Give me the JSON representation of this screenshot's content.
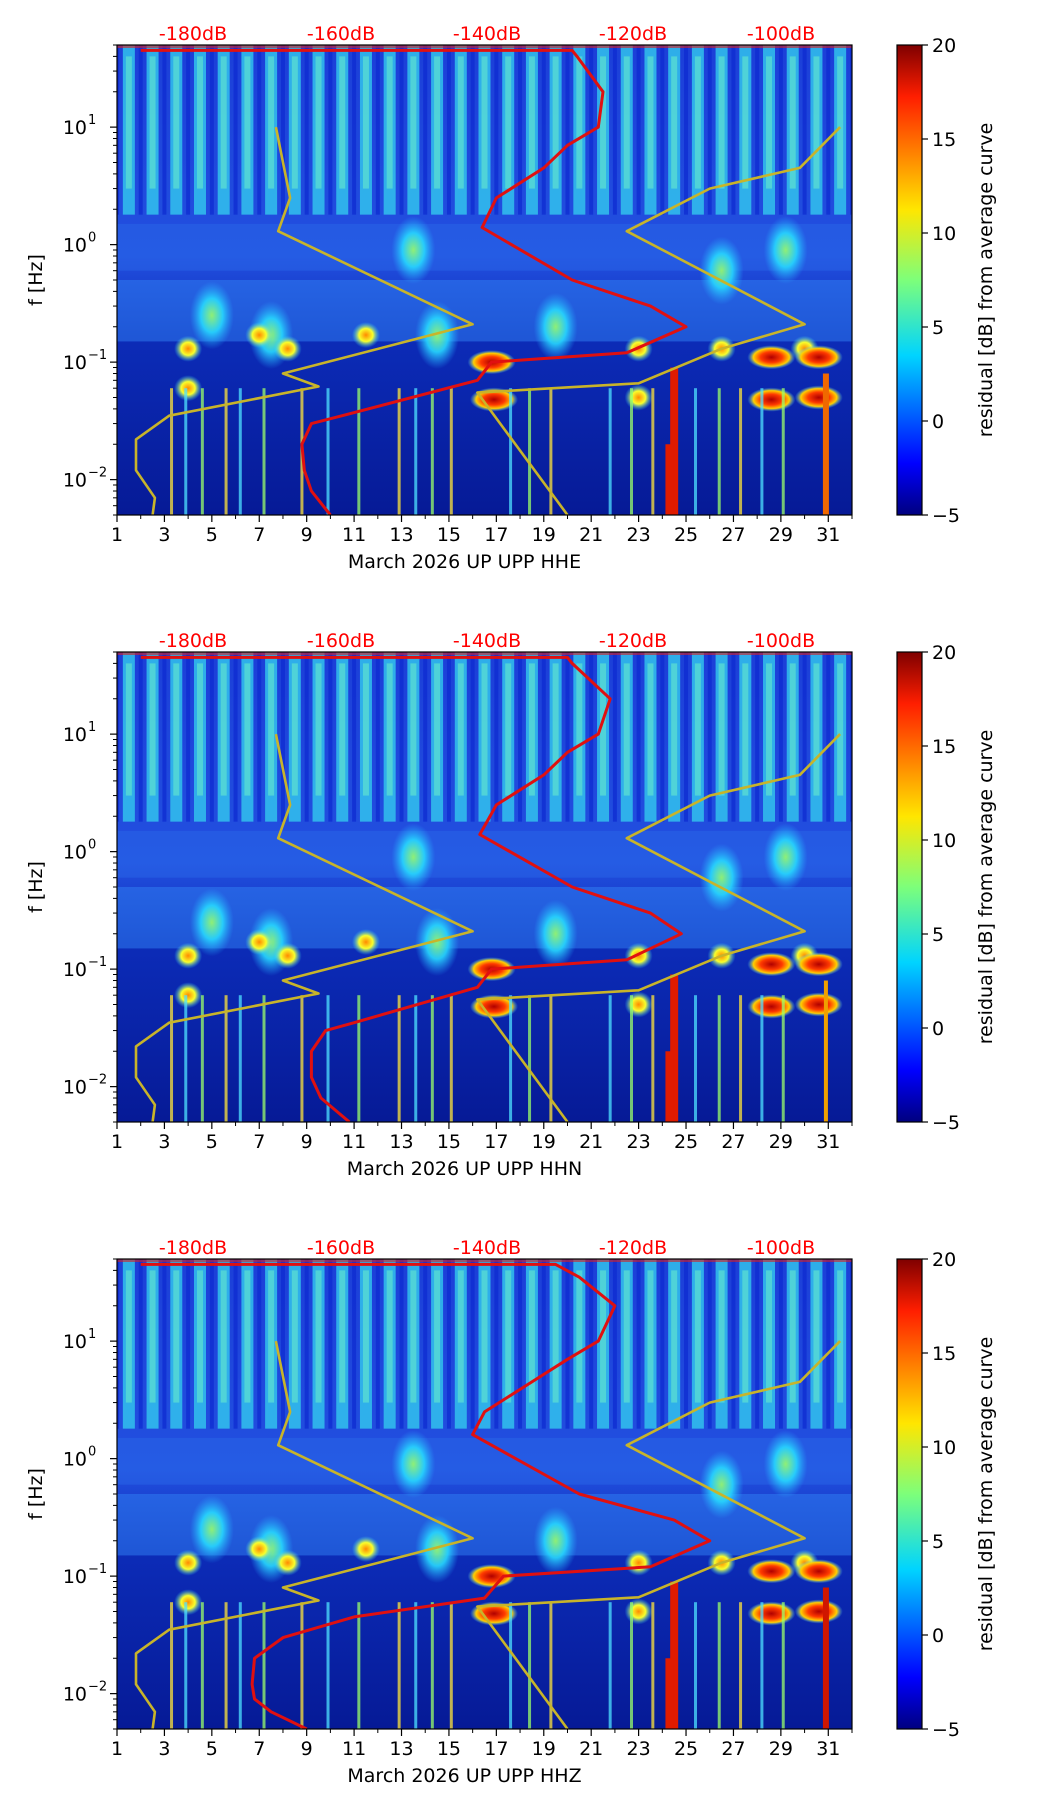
{
  "chart_data": [
    {
      "type": "heatmap",
      "xlabel": "March 2026 UP UPP  HHE",
      "ylabel": "f [Hz]",
      "x_ticks": [
        "1",
        "3",
        "5",
        "7",
        "9",
        "11",
        "13",
        "15",
        "17",
        "19",
        "21",
        "23",
        "25",
        "27",
        "29",
        "31"
      ],
      "x_range": [
        1,
        32
      ],
      "y_scale": "log",
      "y_range": [
        0.005,
        50
      ],
      "y_ticks": [
        "10^-2",
        "10^-1",
        "10^0",
        "10^1"
      ],
      "top_axis_ticks": [
        "-180dB",
        "-160dB",
        "-140dB",
        "-120dB",
        "-100dB"
      ],
      "top_axis_color": "#ff0000",
      "colorbar": {
        "label": "residual [dB] from average curve",
        "min": -5,
        "max": 20,
        "ticks": [
          "20",
          "15",
          "10",
          "5",
          "0",
          "−5"
        ]
      },
      "series": [
        {
          "name": "noise model bounds",
          "color": "#c8b42a",
          "points": [
            [
              2.5,
              0.005
            ],
            [
              2.6,
              0.007
            ],
            [
              1.8,
              0.012
            ],
            [
              1.8,
              0.022
            ],
            [
              3.2,
              0.035
            ],
            [
              9.5,
              0.062
            ],
            [
              8,
              0.08
            ],
            [
              16,
              0.21
            ],
            [
              7.8,
              1.3
            ],
            [
              8.3,
              2.5
            ],
            [
              7.7,
              10
            ]
          ]
        },
        {
          "name": "noise model bounds high",
          "color": "#c8b42a",
          "points": [
            [
              20,
              0.005
            ],
            [
              16.2,
              0.055
            ],
            [
              23,
              0.066
            ],
            [
              26.5,
              0.13
            ],
            [
              30,
              0.21
            ],
            [
              22.5,
              1.3
            ],
            [
              26,
              3
            ],
            [
              29.8,
              4.5
            ],
            [
              31.5,
              10
            ]
          ]
        },
        {
          "name": "PSD curve",
          "color": "#e01010",
          "points": [
            [
              10,
              0.005
            ],
            [
              9.2,
              0.008
            ],
            [
              8.9,
              0.012
            ],
            [
              8.8,
              0.02
            ],
            [
              9.2,
              0.03
            ],
            [
              10.5,
              0.035
            ],
            [
              16.2,
              0.07
            ],
            [
              16.8,
              0.1
            ],
            [
              22.5,
              0.12
            ],
            [
              25,
              0.2
            ],
            [
              23.5,
              0.3
            ],
            [
              20.2,
              0.5
            ],
            [
              16.4,
              1.4
            ],
            [
              17,
              2.5
            ],
            [
              19,
              4.5
            ],
            [
              20,
              7
            ],
            [
              21.3,
              10
            ],
            [
              21.5,
              20
            ],
            [
              20.4,
              40
            ],
            [
              20.2,
              45
            ],
            [
              2,
              45
            ]
          ]
        }
      ]
    },
    {
      "type": "heatmap",
      "xlabel": "March 2026 UP UPP  HHN",
      "ylabel": "f [Hz]",
      "x_ticks": [
        "1",
        "3",
        "5",
        "7",
        "9",
        "11",
        "13",
        "15",
        "17",
        "19",
        "21",
        "23",
        "25",
        "27",
        "29",
        "31"
      ],
      "x_range": [
        1,
        32
      ],
      "y_scale": "log",
      "y_range": [
        0.005,
        50
      ],
      "y_ticks": [
        "10^-2",
        "10^-1",
        "10^0",
        "10^1"
      ],
      "top_axis_ticks": [
        "-180dB",
        "-160dB",
        "-140dB",
        "-120dB",
        "-100dB"
      ],
      "top_axis_color": "#ff0000",
      "colorbar": {
        "label": "residual [dB] from average curve",
        "min": -5,
        "max": 20,
        "ticks": [
          "20",
          "15",
          "10",
          "5",
          "0",
          "−5"
        ]
      },
      "series": [
        {
          "name": "noise model bounds",
          "color": "#c8b42a",
          "points": [
            [
              2.5,
              0.005
            ],
            [
              2.6,
              0.007
            ],
            [
              1.8,
              0.012
            ],
            [
              1.8,
              0.022
            ],
            [
              3.2,
              0.035
            ],
            [
              9.5,
              0.062
            ],
            [
              8,
              0.08
            ],
            [
              16,
              0.21
            ],
            [
              7.8,
              1.3
            ],
            [
              8.3,
              2.5
            ],
            [
              7.7,
              10
            ]
          ]
        },
        {
          "name": "noise model bounds high",
          "color": "#c8b42a",
          "points": [
            [
              20,
              0.005
            ],
            [
              16.2,
              0.055
            ],
            [
              23,
              0.066
            ],
            [
              26.5,
              0.13
            ],
            [
              30,
              0.21
            ],
            [
              22.5,
              1.3
            ],
            [
              26,
              3
            ],
            [
              29.8,
              4.5
            ],
            [
              31.5,
              10
            ]
          ]
        },
        {
          "name": "PSD curve",
          "color": "#e01010",
          "points": [
            [
              10.8,
              0.005
            ],
            [
              9.6,
              0.008
            ],
            [
              9.2,
              0.012
            ],
            [
              9.2,
              0.02
            ],
            [
              9.8,
              0.03
            ],
            [
              11,
              0.035
            ],
            [
              16.2,
              0.07
            ],
            [
              16.8,
              0.1
            ],
            [
              22.5,
              0.12
            ],
            [
              24.8,
              0.2
            ],
            [
              23.5,
              0.3
            ],
            [
              20.2,
              0.5
            ],
            [
              16.3,
              1.4
            ],
            [
              17,
              2.5
            ],
            [
              19,
              4.5
            ],
            [
              20,
              7
            ],
            [
              21.3,
              10
            ],
            [
              21.8,
              20
            ],
            [
              20.2,
              40
            ],
            [
              20,
              45
            ],
            [
              2,
              45
            ]
          ]
        }
      ]
    },
    {
      "type": "heatmap",
      "xlabel": "March 2026 UP UPP  HHZ",
      "ylabel": "f [Hz]",
      "x_ticks": [
        "1",
        "3",
        "5",
        "7",
        "9",
        "11",
        "13",
        "15",
        "17",
        "19",
        "21",
        "23",
        "25",
        "27",
        "29",
        "31"
      ],
      "x_range": [
        1,
        32
      ],
      "y_scale": "log",
      "y_range": [
        0.005,
        50
      ],
      "y_ticks": [
        "10^-2",
        "10^-1",
        "10^0",
        "10^1"
      ],
      "top_axis_ticks": [
        "-180dB",
        "-160dB",
        "-140dB",
        "-120dB",
        "-100dB"
      ],
      "top_axis_color": "#ff0000",
      "colorbar": {
        "label": "residual [dB] from average curve",
        "min": -5,
        "max": 20,
        "ticks": [
          "20",
          "15",
          "10",
          "5",
          "0",
          "−5"
        ]
      },
      "series": [
        {
          "name": "noise model bounds",
          "color": "#c8b42a",
          "points": [
            [
              2.5,
              0.005
            ],
            [
              2.6,
              0.007
            ],
            [
              1.8,
              0.012
            ],
            [
              1.8,
              0.022
            ],
            [
              3.2,
              0.035
            ],
            [
              9.5,
              0.062
            ],
            [
              8,
              0.08
            ],
            [
              16,
              0.21
            ],
            [
              7.8,
              1.3
            ],
            [
              8.3,
              2.5
            ],
            [
              7.7,
              10
            ]
          ]
        },
        {
          "name": "noise model bounds high",
          "color": "#c8b42a",
          "points": [
            [
              20,
              0.005
            ],
            [
              16.2,
              0.055
            ],
            [
              23,
              0.066
            ],
            [
              26.5,
              0.13
            ],
            [
              30,
              0.21
            ],
            [
              22.5,
              1.3
            ],
            [
              26,
              3
            ],
            [
              29.8,
              4.5
            ],
            [
              31.5,
              10
            ]
          ]
        },
        {
          "name": "PSD curve",
          "color": "#e01010",
          "points": [
            [
              9,
              0.005
            ],
            [
              7.5,
              0.007
            ],
            [
              6.8,
              0.009
            ],
            [
              6.7,
              0.012
            ],
            [
              6.8,
              0.02
            ],
            [
              8,
              0.03
            ],
            [
              11,
              0.045
            ],
            [
              16.5,
              0.065
            ],
            [
              17.3,
              0.1
            ],
            [
              23.5,
              0.12
            ],
            [
              26,
              0.2
            ],
            [
              24.5,
              0.3
            ],
            [
              20.5,
              0.5
            ],
            [
              16,
              1.6
            ],
            [
              16.5,
              2.5
            ],
            [
              18.5,
              4.5
            ],
            [
              20,
              7
            ],
            [
              21.3,
              10
            ],
            [
              22,
              20
            ],
            [
              20.5,
              35
            ],
            [
              19.5,
              45
            ],
            [
              2,
              45
            ]
          ]
        }
      ]
    }
  ]
}
